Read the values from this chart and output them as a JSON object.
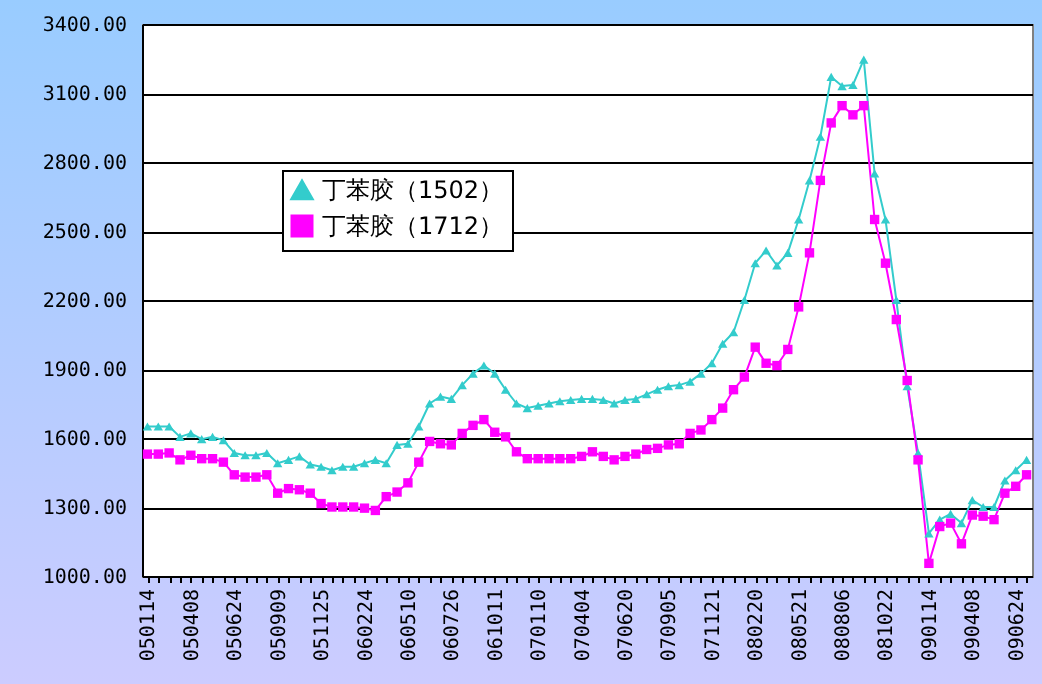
{
  "chart_data": {
    "type": "line",
    "categories": [
      "050114",
      null,
      null,
      null,
      "050408",
      null,
      null,
      null,
      "050624",
      null,
      null,
      null,
      "050909",
      null,
      null,
      null,
      "051125",
      null,
      null,
      null,
      "060224",
      null,
      null,
      null,
      "060510",
      null,
      null,
      null,
      "060726",
      null,
      null,
      null,
      "061011",
      null,
      null,
      null,
      "070110",
      null,
      null,
      null,
      "070404",
      null,
      null,
      null,
      "070620",
      null,
      null,
      null,
      "070905",
      null,
      null,
      null,
      "071121",
      null,
      null,
      null,
      "080220",
      null,
      null,
      null,
      "080521",
      null,
      null,
      null,
      "080806",
      null,
      null,
      null,
      "081022",
      null,
      null,
      null,
      "090114",
      null,
      null,
      null,
      "090408",
      null,
      null,
      null,
      "090624",
      null
    ],
    "series": [
      {
        "name": "丁苯胶（1502）",
        "color": "#33cccc",
        "marker": "triangle",
        "values": [
          1650,
          1650,
          1650,
          1605,
          1620,
          1595,
          1605,
          1590,
          1535,
          1525,
          1525,
          1535,
          1490,
          1505,
          1520,
          1485,
          1475,
          1460,
          1475,
          1475,
          1490,
          1505,
          1490,
          1570,
          1575,
          1650,
          1750,
          1780,
          1770,
          1830,
          1880,
          1915,
          1880,
          1810,
          1750,
          1730,
          1740,
          1750,
          1760,
          1765,
          1770,
          1770,
          1765,
          1750,
          1765,
          1770,
          1790,
          1810,
          1825,
          1830,
          1845,
          1880,
          1925,
          2010,
          2060,
          2200,
          2360,
          2415,
          2350,
          2405,
          2550,
          2720,
          2910,
          3170,
          3130,
          3135,
          3245,
          2750,
          2550,
          2200,
          1825,
          1535,
          1185,
          1245,
          1270,
          1230,
          1330,
          1300,
          1300,
          1415,
          1460,
          1505
        ]
      },
      {
        "name": "丁苯胶（1712）",
        "color": "#ff00ff",
        "marker": "square",
        "values": [
          1530,
          1530,
          1535,
          1505,
          1525,
          1510,
          1510,
          1495,
          1440,
          1430,
          1430,
          1440,
          1360,
          1380,
          1375,
          1360,
          1315,
          1300,
          1300,
          1300,
          1295,
          1285,
          1345,
          1365,
          1405,
          1495,
          1585,
          1575,
          1570,
          1620,
          1655,
          1680,
          1625,
          1605,
          1540,
          1510,
          1510,
          1510,
          1510,
          1510,
          1520,
          1540,
          1520,
          1505,
          1520,
          1530,
          1550,
          1555,
          1570,
          1575,
          1620,
          1635,
          1680,
          1730,
          1810,
          1865,
          1995,
          1925,
          1915,
          1985,
          2170,
          2405,
          2720,
          2970,
          3045,
          3005,
          3045,
          2550,
          2360,
          2115,
          1850,
          1505,
          1055,
          1215,
          1230,
          1140,
          1265,
          1260,
          1245,
          1360,
          1390,
          1440
        ]
      }
    ],
    "ylim": [
      1000,
      3400
    ],
    "yticks": [
      {
        "value": 1000,
        "label": "1000.00"
      },
      {
        "value": 1300,
        "label": "1300.00"
      },
      {
        "value": 1600,
        "label": "1600.00"
      },
      {
        "value": 1900,
        "label": "1900.00"
      },
      {
        "value": 2200,
        "label": "2200.00"
      },
      {
        "value": 2500,
        "label": "2500.00"
      },
      {
        "value": 2800,
        "label": "2800.00"
      },
      {
        "value": 3100,
        "label": "3100.00"
      },
      {
        "value": 3400,
        "label": "3400.00"
      }
    ],
    "grid": "y",
    "legend": "top left",
    "line_style": "solid"
  }
}
